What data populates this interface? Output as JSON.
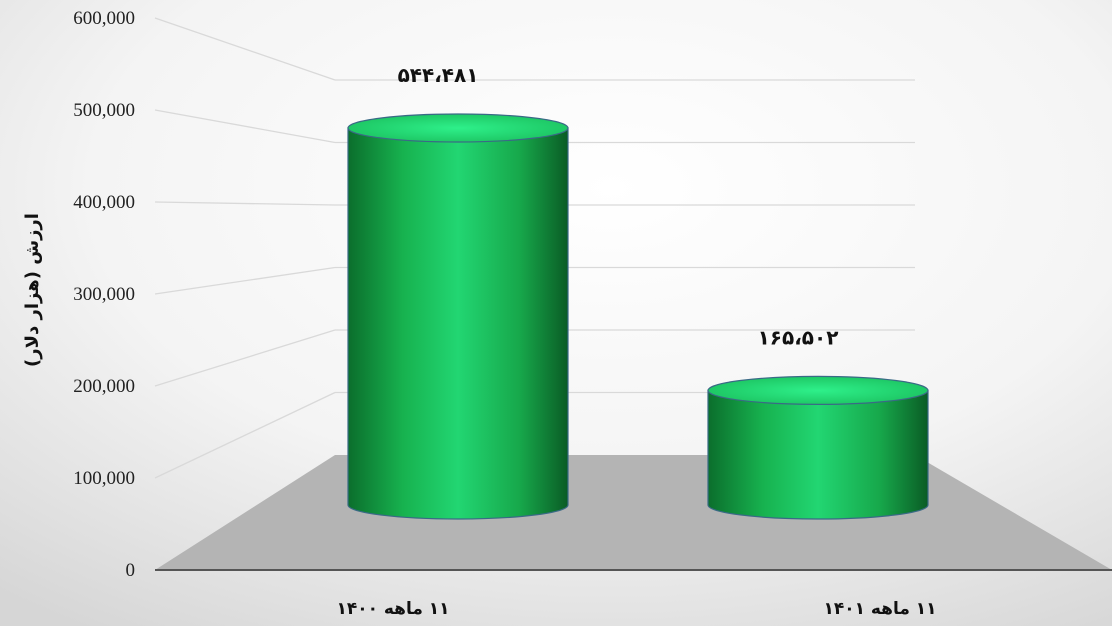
{
  "chart_data": {
    "type": "bar",
    "categories": [
      "۱۱ ماهه ۱۴۰۰",
      "۱۱ ماهه ۱۴۰۱"
    ],
    "values": [
      544481,
      165502
    ],
    "data_labels": [
      "۵۴۴،۴۸۱",
      "۱۶۵،۵۰۲"
    ],
    "ylabel": "ارزش (هزار دلار)",
    "yticks": [
      "0",
      "100,000",
      "200,000",
      "300,000",
      "400,000",
      "500,000",
      "600,000"
    ],
    "ylim": [
      0,
      600000
    ],
    "style": "3d-cylinder",
    "colors": {
      "bar": "#1fcf6a",
      "bar_dark": "#0b6e2c",
      "floor": "#b4b4b4",
      "gridline": "#d9d9d9"
    },
    "grid": true
  }
}
